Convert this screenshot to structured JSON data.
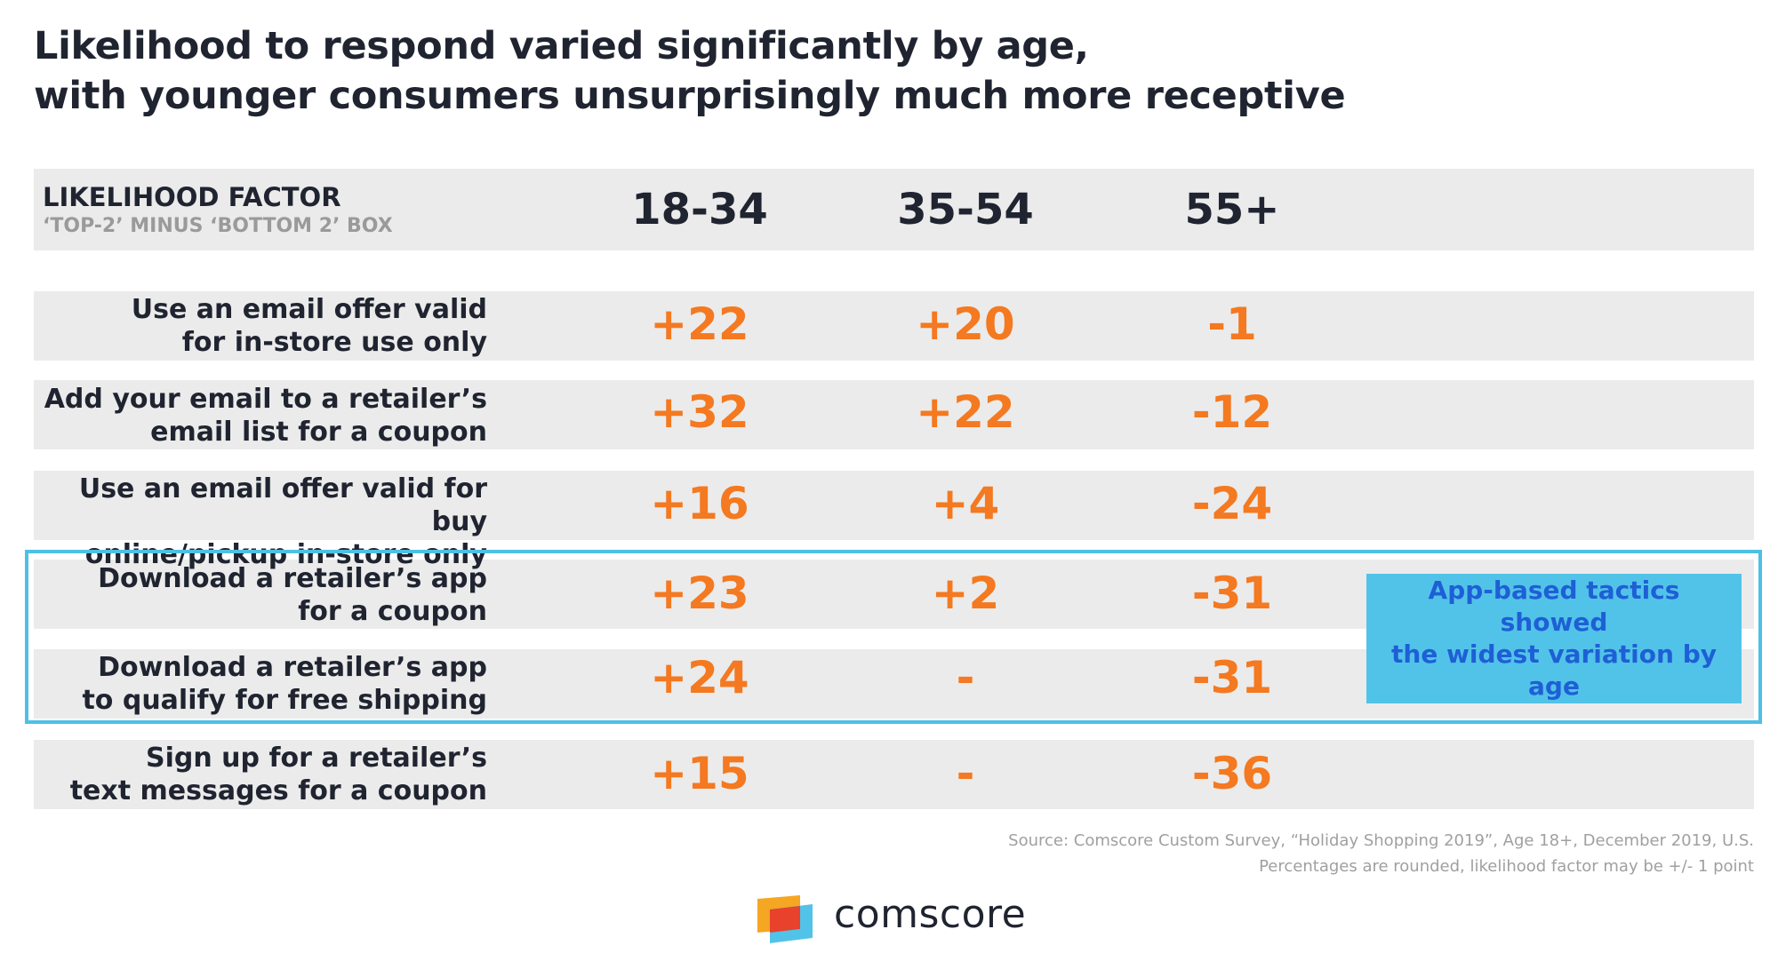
{
  "title": {
    "line1": "Likelihood to respond varied significantly by age,",
    "line2": "with younger consumers unsurprisingly much more receptive"
  },
  "chart_data": {
    "type": "table",
    "header": {
      "label": "LIKELIHOOD FACTOR",
      "sublabel": "‘TOP-2’ MINUS ‘BOTTOM 2’ BOX"
    },
    "columns": [
      "18-34",
      "35-54",
      "55+"
    ],
    "rows": [
      {
        "line1": "Use an email offer valid",
        "line2": "for in-store use only",
        "values": [
          "+22",
          "+20",
          "-1"
        ]
      },
      {
        "line1": "Add your email to a retailer’s",
        "line2": "email list for a coupon",
        "values": [
          "+32",
          "+22",
          "-12"
        ]
      },
      {
        "line1": "Use an email offer valid for buy",
        "line2": "online/pickup in-store only",
        "values": [
          "+16",
          "+4",
          "-24"
        ]
      },
      {
        "line1": "Download a retailer’s app",
        "line2": "for a coupon",
        "values": [
          "+23",
          "+2",
          "-31"
        ]
      },
      {
        "line1": "Download a retailer’s app",
        "line2": "to qualify for free shipping",
        "values": [
          "+24",
          "-",
          "-31"
        ]
      },
      {
        "line1": "Sign up for a retailer’s",
        "line2": "text messages for a coupon",
        "values": [
          "+15",
          "-",
          "-36"
        ]
      }
    ],
    "callout": {
      "line1": "App-based tactics showed",
      "line2": "the widest variation by age"
    }
  },
  "source": {
    "line1": "Source: Comscore Custom Survey, “Holiday Shopping 2019”, Age 18+, December 2019, U.S.",
    "line2": "Percentages are rounded, likelihood factor may be +/- 1 point"
  },
  "brand": {
    "name": "comscore"
  },
  "colors": {
    "value": "#f47920",
    "band": "#ebebeb",
    "highlight": "#4ec0e4",
    "callout_bg": "#52c3e8",
    "callout_text": "#1e5fd6",
    "text": "#1f2430"
  }
}
